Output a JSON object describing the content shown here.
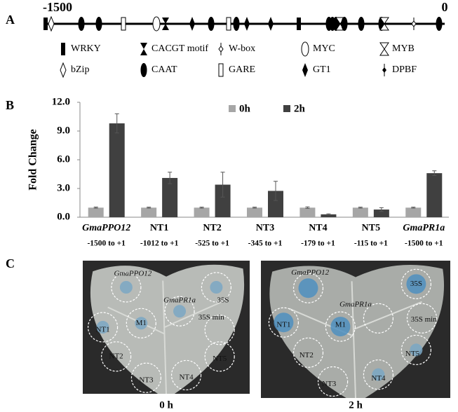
{
  "panel_labels": [
    "A",
    "B",
    "C"
  ],
  "panel_a": {
    "start_label": "-1500",
    "end_label": "0",
    "legend": [
      "WRKY",
      "CACGT motif",
      "W-box",
      "MYC",
      "MYB",
      "bZip",
      "CAAT",
      "GARE",
      "GT1",
      "DPBF"
    ]
  },
  "chart_data": {
    "type": "bar",
    "ylabel": "Fold  Change",
    "categories": [
      "GmaPPO12",
      "NT1",
      "NT2",
      "NT3",
      "NT4",
      "NT5",
      "GmaPR1a"
    ],
    "category_sublabels": [
      "-1500 to +1",
      "-1012 to +1",
      "-525 to +1",
      "-345 to +1",
      "-179 to +1",
      "-115 to +1",
      "-1500 to +1"
    ],
    "series": [
      {
        "name": "0h",
        "color": "#a6a6a6",
        "values": [
          1.0,
          1.0,
          1.0,
          1.0,
          1.0,
          1.0,
          1.0
        ],
        "errors": [
          0.06,
          0.05,
          0.05,
          0.05,
          0.08,
          0.05,
          0.05
        ]
      },
      {
        "name": "2h",
        "color": "#404040",
        "values": [
          9.8,
          4.1,
          3.4,
          2.75,
          0.3,
          0.8,
          4.6
        ],
        "errors": [
          1.0,
          0.6,
          1.3,
          1.0,
          0.05,
          0.2,
          0.25
        ]
      }
    ],
    "ylim": [
      0,
      12
    ],
    "yticks": [
      {
        "value": 0,
        "label": "0.0"
      },
      {
        "value": 3,
        "label": "3.0"
      },
      {
        "value": 6,
        "label": "6.0"
      },
      {
        "value": 9,
        "label": "9.0"
      },
      {
        "value": 12,
        "label": "12.0"
      }
    ],
    "grid": false
  },
  "panel_c": {
    "images": [
      {
        "caption": "0 h",
        "labels": [
          "GmaPPO12",
          "35S",
          "M1",
          "GmaPR1a",
          "35S min",
          "NT1",
          "NT2",
          "NT5",
          "NT3",
          "NT4"
        ]
      },
      {
        "caption": "2 h",
        "labels": [
          "GmaPPO12",
          "35S",
          "M1",
          "GmaPR1a",
          "35S min",
          "NT1",
          "NT2",
          "NT5",
          "NT3",
          "NT4"
        ]
      }
    ]
  }
}
